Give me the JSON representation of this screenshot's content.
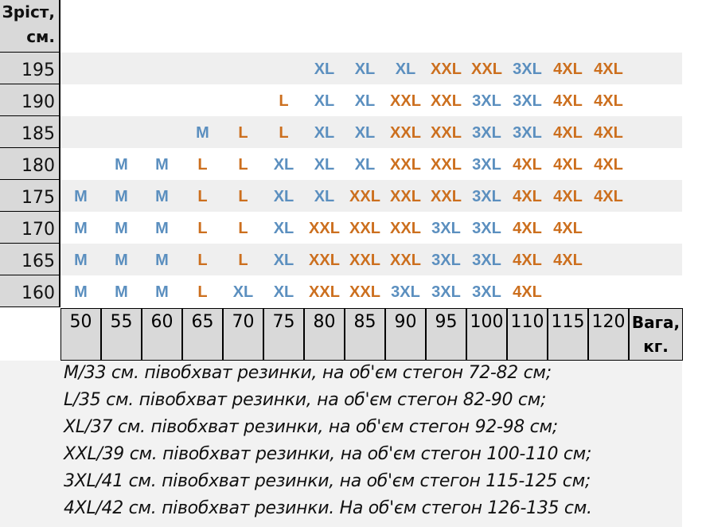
{
  "height_header": [
    "Зріст,",
    "см."
  ],
  "weight_header": [
    "Вага,",
    "кг."
  ],
  "heights": [
    "195",
    "190",
    "185",
    "180",
    "175",
    "170",
    "165",
    "160"
  ],
  "weights": [
    "50",
    "55",
    "60",
    "65",
    "70",
    "75",
    "80",
    "85",
    "90",
    "95",
    "100",
    "110",
    "115",
    "120"
  ],
  "grid": [
    [
      "",
      "",
      "",
      "",
      "",
      "",
      "XL",
      "XL",
      "XL",
      "XXL",
      "XXL",
      "3XL",
      "4XL",
      "4XL"
    ],
    [
      "",
      "",
      "",
      "",
      "",
      "L",
      "XL",
      "XL",
      "XXL",
      "XXL",
      "3XL",
      "3XL",
      "4XL",
      "4XL"
    ],
    [
      "",
      "",
      "",
      "M",
      "L",
      "L",
      "XL",
      "XL",
      "XXL",
      "XXL",
      "3XL",
      "3XL",
      "4XL",
      "4XL"
    ],
    [
      "",
      "M",
      "M",
      "L",
      "L",
      "XL",
      "XL",
      "XL",
      "XXL",
      "XXL",
      "3XL",
      "4XL",
      "4XL",
      "4XL"
    ],
    [
      "M",
      "M",
      "M",
      "L",
      "L",
      "XL",
      "XL",
      "XXL",
      "XXL",
      "XXL",
      "3XL",
      "4XL",
      "4XL",
      "4XL"
    ],
    [
      "M",
      "M",
      "M",
      "L",
      "L",
      "XL",
      "XXL",
      "XXL",
      "XXL",
      "3XL",
      "3XL",
      "4XL",
      "4XL",
      ""
    ],
    [
      "M",
      "M",
      "M",
      "L",
      "L",
      "XL",
      "XXL",
      "XXL",
      "XXL",
      "3XL",
      "3XL",
      "4XL",
      "4XL",
      ""
    ],
    [
      "M",
      "M",
      "M",
      "L",
      "XL",
      "XL",
      "XXL",
      "XXL",
      "3XL",
      "3XL",
      "3XL",
      "4XL",
      "",
      ""
    ]
  ],
  "size_colors": {
    "M": "#5b8fbf",
    "L": "#cc6f1e",
    "XL": "#5b8fbf",
    "XXL": "#cc6f1e",
    "3XL": "#5b8fbf",
    "4XL": "#cc6f1e"
  },
  "legend": [
    "M/33 см. півобхват резинки, на об'єм стегон 72-82 см;",
    "L/35 см. півобхват резинки, на об'єм стегон 82-90 см;",
    "XL/37 см. півобхват резинки, на об'єм стегон 92-98 см;",
    "XXL/39 см. півобхват резинки, на об'єм стегон 100-110 см;",
    "3XL/41 см. півобхват резинки, на об'єм стегон 115-125 см;",
    "4XL/42 см. півобхват резинки. На об'єм стегон 126-135 см."
  ]
}
